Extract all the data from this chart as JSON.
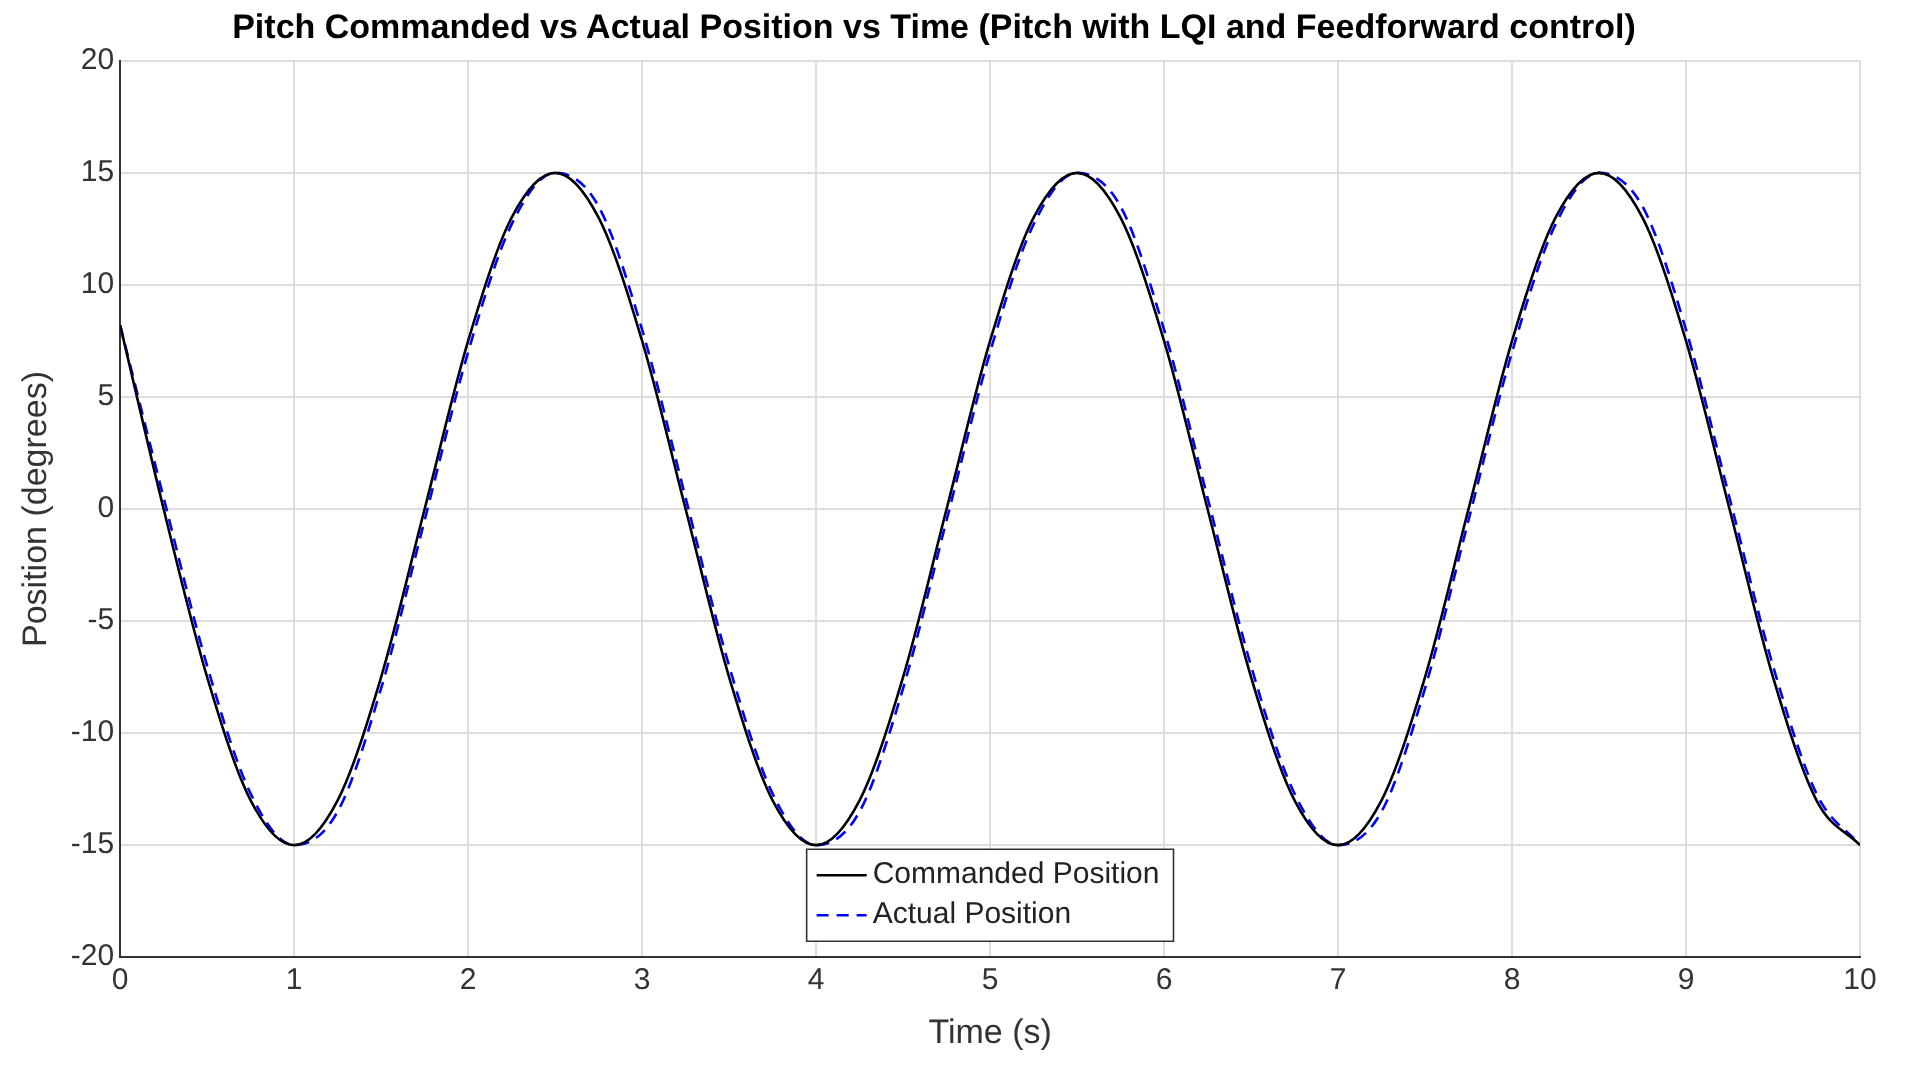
{
  "chart_data": {
    "type": "line",
    "title": "Pitch Commanded vs Actual Position vs Time (Pitch with LQI and Feedforward control)",
    "xlabel": "Time (s)",
    "ylabel": "Position (degrees)",
    "x": [
      0,
      0.25,
      0.5,
      0.75,
      1,
      1.25,
      1.5,
      1.75,
      2,
      2.25,
      2.5,
      2.75,
      3,
      3.25,
      3.5,
      3.75,
      4,
      4.25,
      4.5,
      4.75,
      5,
      5.25,
      5.5,
      5.75,
      6,
      6.25,
      6.5,
      6.75,
      7,
      7.25,
      7.5,
      7.75,
      8,
      8.25,
      8.5,
      8.75,
      9,
      9.25,
      9.5,
      9.75,
      10
    ],
    "series": [
      {
        "name": "Commanded Position",
        "color": "#000000",
        "line_style": "solid",
        "values": [
          8.2,
          0,
          -7.5,
          -13,
          -15,
          -13,
          -7.5,
          0,
          7.5,
          13,
          15,
          13,
          7.5,
          0,
          -7.5,
          -13,
          -15,
          -13,
          -7.5,
          0,
          7.5,
          13,
          15,
          13,
          7.5,
          0,
          -7.5,
          -13,
          -15,
          -13,
          -7.5,
          0,
          7.5,
          13,
          15,
          13,
          7.5,
          0,
          -7.5,
          -13,
          -15
        ]
      },
      {
        "name": "Actual Position",
        "color": "#0000ff",
        "line_style": "dashed",
        "values": [
          8.2,
          0.5,
          -7,
          -12.7,
          -15,
          -13.5,
          -8,
          -0.5,
          7,
          12.7,
          15,
          13.5,
          8,
          0.5,
          -7,
          -12.7,
          -15,
          -13.5,
          -8,
          -0.5,
          7,
          12.7,
          15,
          13.5,
          8,
          0.5,
          -7,
          -12.7,
          -15,
          -13.5,
          -8,
          -0.5,
          7,
          12.7,
          15,
          13.5,
          8,
          0.5,
          -7,
          -12.7,
          -15
        ]
      }
    ],
    "xlim": [
      0,
      10
    ],
    "xticks": [
      0,
      1,
      2,
      3,
      4,
      5,
      6,
      7,
      8,
      9,
      10
    ],
    "ylim": [
      -20,
      20
    ],
    "yticks": [
      -20,
      -15,
      -10,
      -5,
      0,
      5,
      10,
      15,
      20
    ],
    "grid": true,
    "legend": "bottom",
    "marker": "none"
  }
}
